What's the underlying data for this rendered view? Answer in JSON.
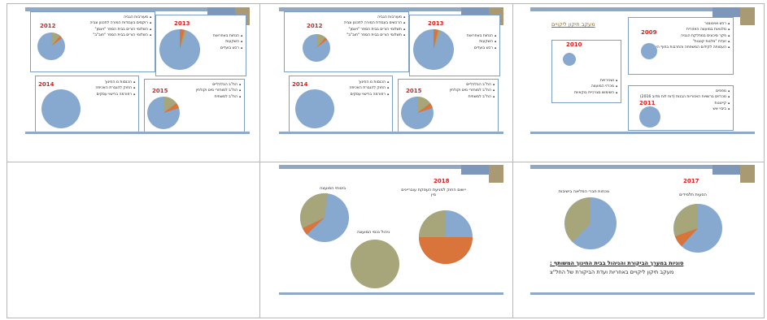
{
  "colors": {
    "blue": "#87a9cf",
    "orange": "#d9743a",
    "olive": "#a7a67a",
    "red": "#e0201b",
    "gold": "#8a6a1f"
  },
  "slide1": {
    "year_2012": "2012",
    "year_2013": "2013",
    "year_2014": "2014",
    "year_2015": "2015",
    "list_2012": [
      "מעורבות הגביה",
      "רוקסים בעבודות המורה לתכנון וגביה",
      "השלומי הורים בבית הספר \"ויצמן\"",
      "השלומי הורים בבית הספר \"חוב\"ב\""
    ],
    "list_2013": [
      "הנחות באחראות",
      "השקעות",
      "רכש בועדים"
    ],
    "list_2014": [
      "הכנסות מ.החינוך",
      "החוק להגברת האכיפה",
      "רפורמה ברישוי עסקים"
    ],
    "list_2015": [
      "הת\"ב הבלכליים",
      "הת\"ב למוחזרי מים וקולחין",
      "הת\"ב למשתית"
    ]
  },
  "slide2": {
    "year_2012": "2012",
    "year_2013": "2013",
    "year_2014": "2014",
    "year_2015": "2015",
    "list_2012": [
      "מעורבות הגביה",
      "הרכשים בעבודת המורה לתכנון וגביה",
      "תשלומי הורים בבית הספר \"ויצמן\"",
      "תשלומי הורים בבית הספר \"חוב\"ב\""
    ],
    "list_2013": [
      "הנחות באחראות",
      "השקעות",
      "רכש בועדים"
    ],
    "list_2014": [
      "הכנסות מ.החינוך",
      "החוק להגברת האכיפה",
      "רפורמה ברישוי עסקים"
    ],
    "list_2015": [
      "הת\"ב הבלכליים",
      "הת\"ב למוחזרי מים וקולחין",
      "הת\"ב למשתית"
    ]
  },
  "slide3": {
    "title": "מעקב תיקון ליקויים",
    "year_2009": "2009",
    "year_2010": "2010",
    "year_2011": "2011",
    "list_2009": [
      "רכש ואינוונטר",
      "מלגאות במועצה האזורית",
      "פקר סיכונים במחלקת הגביה",
      "זעדת \"מלגות קטנות\"",
      "העמותה לקידום המשפחה והתרבות בחוף השרון"
    ],
    "list_2010": [
      "ושכירויות",
      "מכרזי המועצה",
      "השימוש בצרכיית בוקאיות"
    ],
    "list_2011": [
      "מפפים",
      "מכרזים ברשויות האזוריות הבנות (דוח לוח מדוב 2016)",
      "קייטנות",
      "ביבוי אש"
    ]
  },
  "slide5": {
    "year": "2018",
    "label_top_right": "יישום החוק למניעת העסקת עובריינים מין",
    "label_top_left": "ביטוחי המועצה",
    "label_bottom": "ניהול נכסי המועצה"
  },
  "slide6": {
    "year": "2017",
    "label_right": "הסעות תלמידים",
    "label_left": "נוכחות חברי המליאה בישיבות",
    "caption_1": "סוגיות במערך הביקורת והניהול בבית החינוך המשותף :",
    "caption_2": "מעקב תיקון ליקויים באחריות ועדת הביקורת של החל\"צ"
  }
}
